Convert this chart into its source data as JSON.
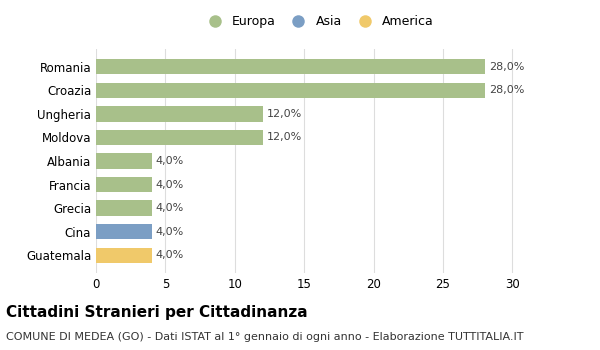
{
  "countries": [
    "Romania",
    "Croazia",
    "Ungheria",
    "Moldova",
    "Albania",
    "Francia",
    "Grecia",
    "Cina",
    "Guatemala"
  ],
  "values": [
    28.0,
    28.0,
    12.0,
    12.0,
    4.0,
    4.0,
    4.0,
    4.0,
    4.0
  ],
  "continents": [
    "Europa",
    "Europa",
    "Europa",
    "Europa",
    "Europa",
    "Europa",
    "Europa",
    "Asia",
    "America"
  ],
  "colors": {
    "Europa": "#a8c08a",
    "Asia": "#7b9ec4",
    "America": "#f0c96a"
  },
  "xlim": [
    0,
    32
  ],
  "xticks": [
    0,
    5,
    10,
    15,
    20,
    25,
    30
  ],
  "title": "Cittadini Stranieri per Cittadinanza",
  "subtitle": "COMUNE DI MEDEA (GO) - Dati ISTAT al 1° gennaio di ogni anno - Elaborazione TUTTITALIA.IT",
  "background_color": "#ffffff",
  "grid_color": "#dddddd",
  "bar_label_fontsize": 8,
  "title_fontsize": 11,
  "subtitle_fontsize": 8
}
